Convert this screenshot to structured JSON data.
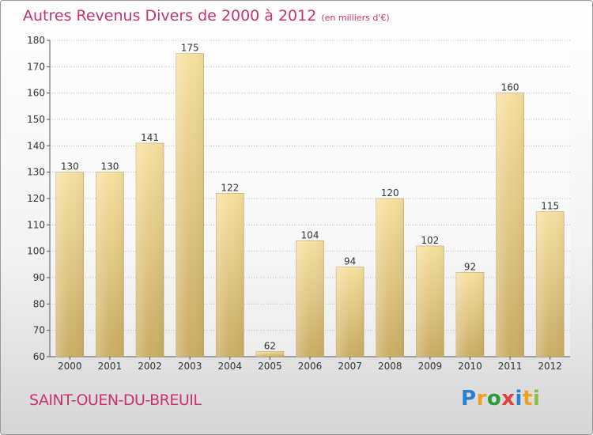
{
  "header": {
    "title": "Autres Revenus Divers de 2000 à 2012",
    "unit": "(en milliers d'€)"
  },
  "footer": {
    "place": "SAINT-OUEN-DU-BREUIL",
    "brand_letters": [
      {
        "ch": "P",
        "color": "#2a7fcf"
      },
      {
        "ch": "r",
        "color": "#f0a020"
      },
      {
        "ch": "o",
        "color": "#2a9a3a"
      },
      {
        "ch": "x",
        "color": "#e0403a"
      },
      {
        "ch": "i",
        "color": "#2a7fcf"
      },
      {
        "ch": "t",
        "color": "#f0a020"
      },
      {
        "ch": "i",
        "color": "#8ac040"
      }
    ]
  },
  "colors": {
    "accent": "#c8326e",
    "bar_top": "#f6e0a0",
    "bar_bottom": "#c9ac64"
  },
  "chart_data": {
    "type": "bar",
    "categories": [
      "2000",
      "2001",
      "2002",
      "2003",
      "2004",
      "2005",
      "2006",
      "2007",
      "2008",
      "2009",
      "2010",
      "2011",
      "2012"
    ],
    "values": [
      130,
      130,
      141,
      175,
      122,
      62,
      104,
      94,
      120,
      102,
      92,
      160,
      115
    ],
    "ylim": [
      60,
      180
    ],
    "yticks": [
      60,
      70,
      80,
      90,
      100,
      110,
      120,
      130,
      140,
      150,
      160,
      170,
      180
    ],
    "grid": true
  }
}
